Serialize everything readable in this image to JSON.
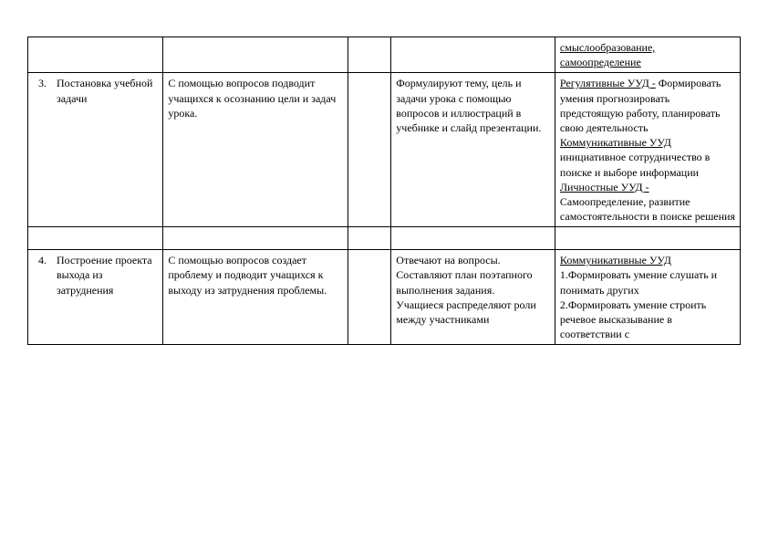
{
  "rows": {
    "r0": {
      "c5_u1": "смыслообразование,",
      "c5_u2": "самоопределение"
    },
    "r1": {
      "num": "3.",
      "stage": "Постановка учебной задачи",
      "c2": "С помощью вопросов подводит учащихся к осознанию цели и задач урока.",
      "c4": "Формулируют тему, цель и задачи урока с помощью вопросов и иллюстраций в учебнике и слайд презентации.",
      "c5_u1": "Регулятивные УУД -",
      "c5_p1": "Формировать умения прогнозировать предстоящую работу, планировать свою деятельность",
      "c5_u2": "Коммуникативные УУД",
      "c5_p2": "инициативное сотрудничество в поиске и выборе информации",
      "c5_u3": "Личностные УУД -",
      "c5_p3": "Самоопределение, развитие самостоятельности в поиске решения"
    },
    "r2": {
      "num": "4.",
      "stage": "Построение проекта выхода из затруднения",
      "c2": "С помощью вопросов создает проблему  и  подводит учащихся к выходу из затруднения проблемы.",
      "c4": "Отвечают на вопросы. Составляют план поэтапного выполнения задания.\nУчащиеся  распределяют роли между участниками",
      "c5_u1": "Коммуникативные УУД",
      "c5_p1": "1.Формировать умение слушать и понимать других\n2.Формировать умение строить речевое высказывание в соответствии с"
    }
  }
}
